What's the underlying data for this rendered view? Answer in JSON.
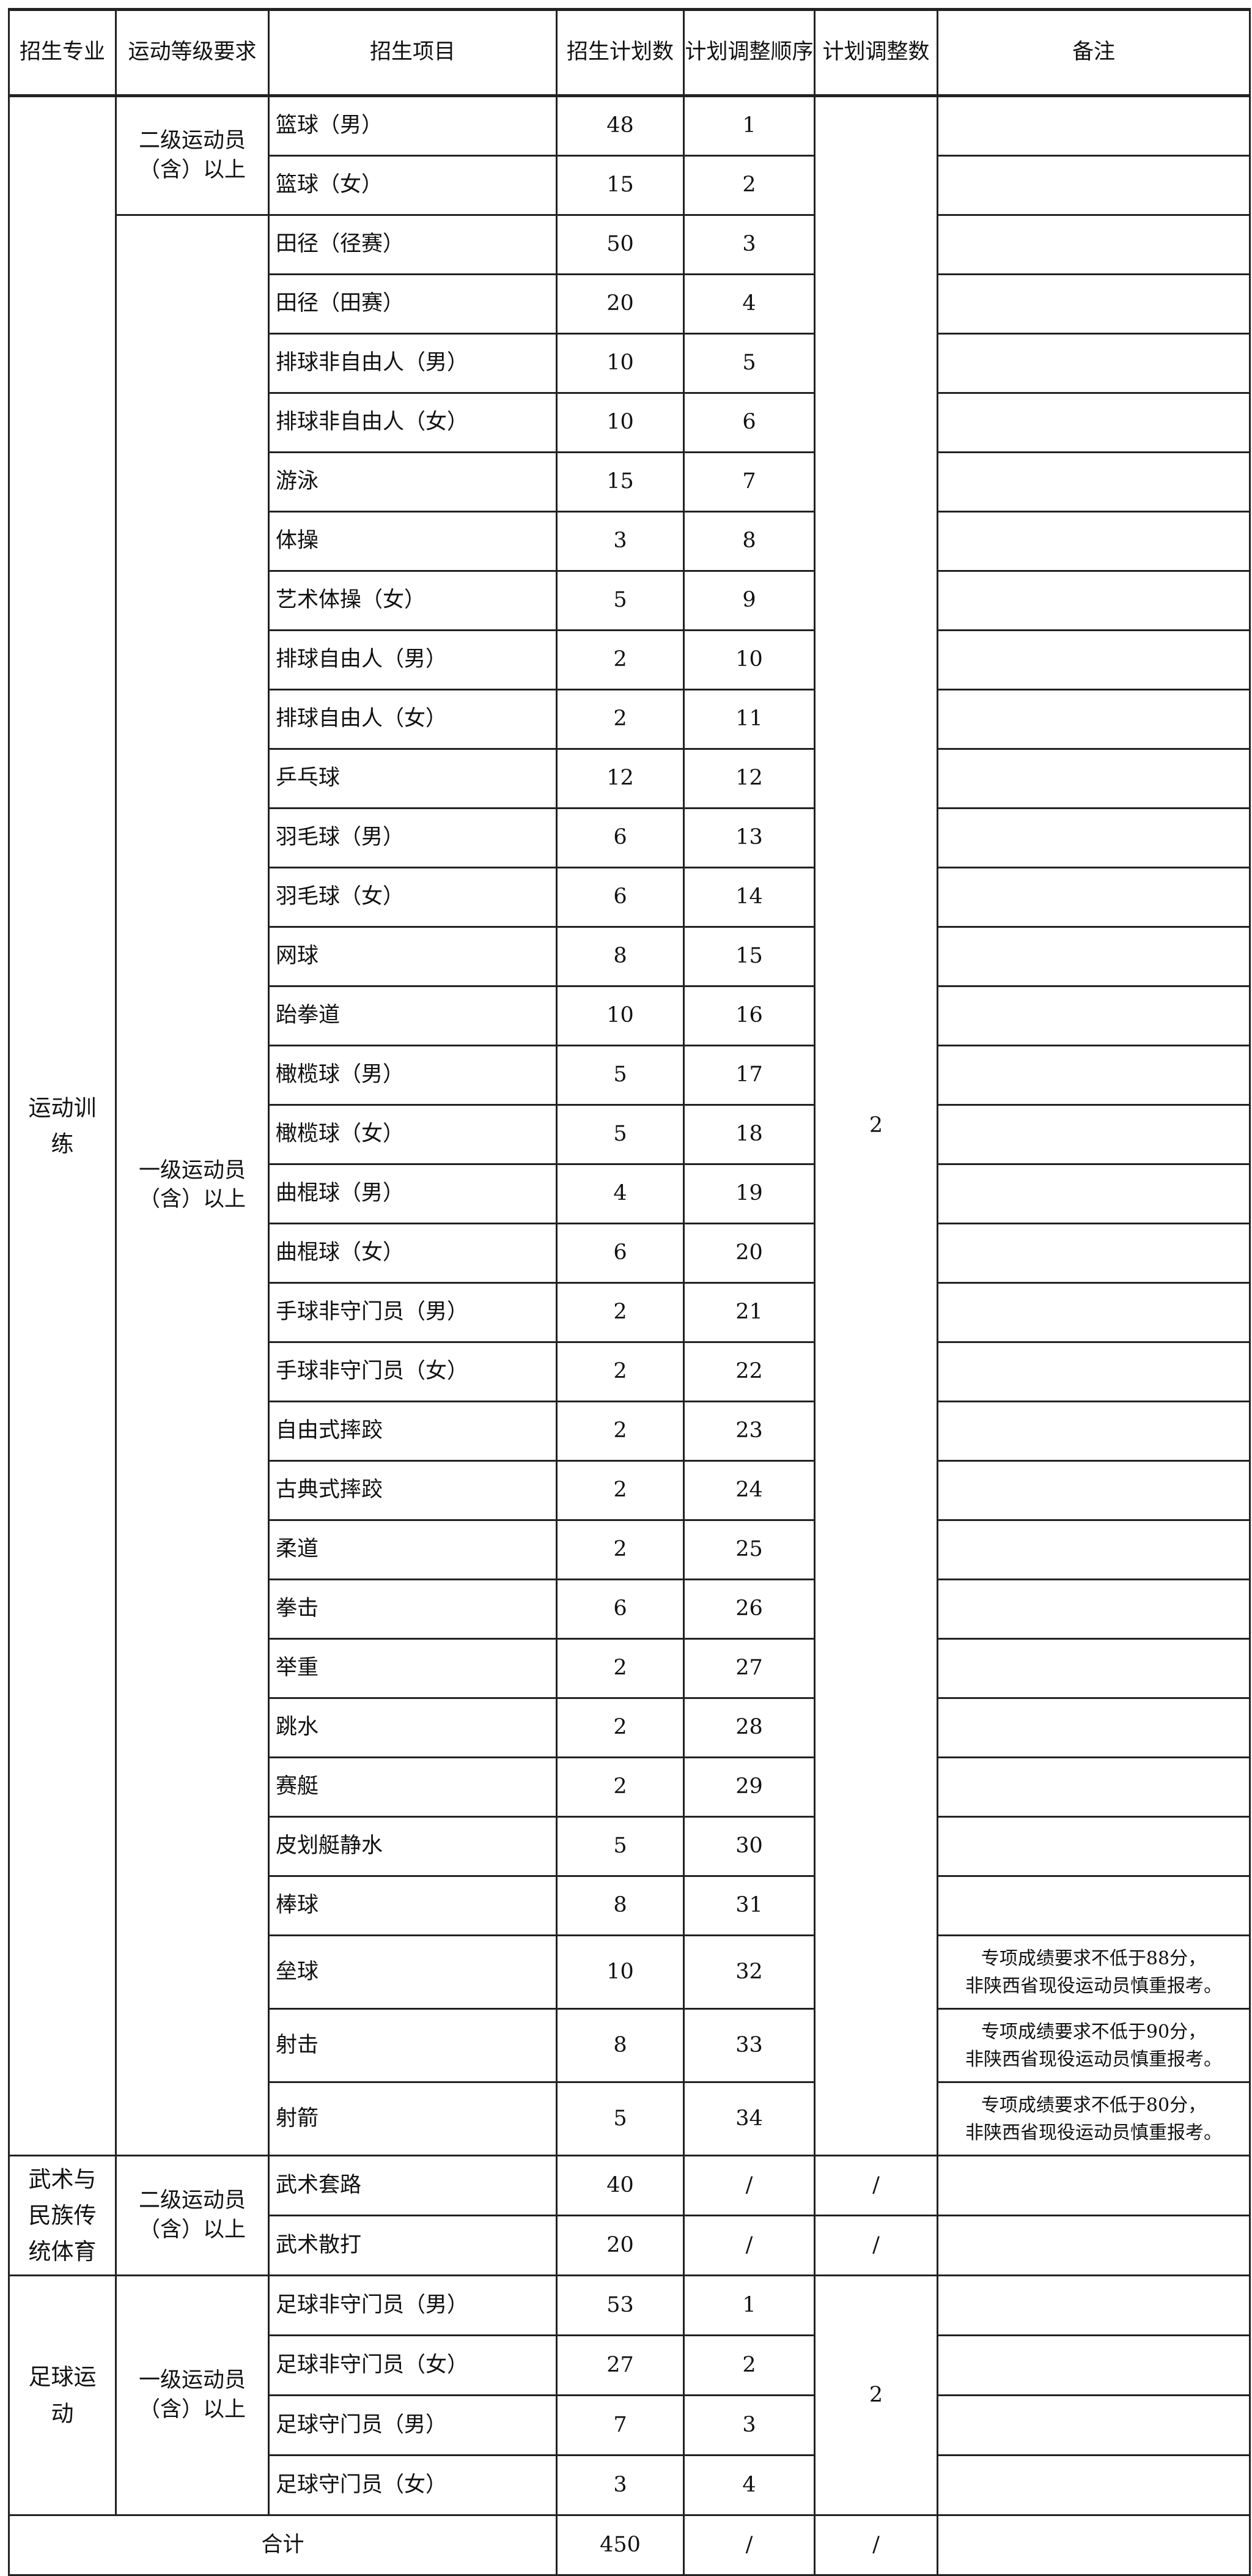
{
  "headers": [
    "招生专业",
    "运动等级要求",
    "招生项目",
    "招生计划数",
    "计划调整顺序",
    "计划调整数",
    "备注"
  ],
  "groups": [
    {
      "major": "运动训练",
      "adjust": "2",
      "levels": [
        {
          "level": "二级运动员（含）以上",
          "rows": [
            {
              "item": "篮球（男）",
              "plan": "48",
              "order": "1",
              "remark": ""
            },
            {
              "item": "篮球（女）",
              "plan": "15",
              "order": "2",
              "remark": ""
            }
          ]
        },
        {
          "level": "一级运动员（含）以上",
          "rows": [
            {
              "item": "田径（径赛）",
              "plan": "50",
              "order": "3",
              "remark": ""
            },
            {
              "item": "田径（田赛）",
              "plan": "20",
              "order": "4",
              "remark": ""
            },
            {
              "item": "排球非自由人（男）",
              "plan": "10",
              "order": "5",
              "remark": ""
            },
            {
              "item": "排球非自由人（女）",
              "plan": "10",
              "order": "6",
              "remark": ""
            },
            {
              "item": "游泳",
              "plan": "15",
              "order": "7",
              "remark": ""
            },
            {
              "item": "体操",
              "plan": "3",
              "order": "8",
              "remark": ""
            },
            {
              "item": "艺术体操（女）",
              "plan": "5",
              "order": "9",
              "remark": ""
            },
            {
              "item": "排球自由人（男）",
              "plan": "2",
              "order": "10",
              "remark": ""
            },
            {
              "item": "排球自由人（女）",
              "plan": "2",
              "order": "11",
              "remark": ""
            },
            {
              "item": "乒乓球",
              "plan": "12",
              "order": "12",
              "remark": ""
            },
            {
              "item": "羽毛球（男）",
              "plan": "6",
              "order": "13",
              "remark": ""
            },
            {
              "item": "羽毛球（女）",
              "plan": "6",
              "order": "14",
              "remark": ""
            },
            {
              "item": "网球",
              "plan": "8",
              "order": "15",
              "remark": ""
            },
            {
              "item": "跆拳道",
              "plan": "10",
              "order": "16",
              "remark": ""
            },
            {
              "item": "橄榄球（男）",
              "plan": "5",
              "order": "17",
              "remark": ""
            },
            {
              "item": "橄榄球（女）",
              "plan": "5",
              "order": "18",
              "remark": ""
            },
            {
              "item": "曲棍球（男）",
              "plan": "4",
              "order": "19",
              "remark": ""
            },
            {
              "item": "曲棍球（女）",
              "plan": "6",
              "order": "20",
              "remark": ""
            },
            {
              "item": "手球非守门员（男）",
              "plan": "2",
              "order": "21",
              "remark": ""
            },
            {
              "item": "手球非守门员（女）",
              "plan": "2",
              "order": "22",
              "remark": ""
            },
            {
              "item": "自由式摔跤",
              "plan": "2",
              "order": "23",
              "remark": ""
            },
            {
              "item": "古典式摔跤",
              "plan": "2",
              "order": "24",
              "remark": ""
            },
            {
              "item": "柔道",
              "plan": "2",
              "order": "25",
              "remark": ""
            },
            {
              "item": "拳击",
              "plan": "6",
              "order": "26",
              "remark": ""
            },
            {
              "item": "举重",
              "plan": "2",
              "order": "27",
              "remark": ""
            },
            {
              "item": "跳水",
              "plan": "2",
              "order": "28",
              "remark": ""
            },
            {
              "item": "赛艇",
              "plan": "2",
              "order": "29",
              "remark": ""
            },
            {
              "item": "皮划艇静水",
              "plan": "5",
              "order": "30",
              "remark": ""
            },
            {
              "item": "棒球",
              "plan": "8",
              "order": "31",
              "remark": ""
            },
            {
              "item": "垒球",
              "plan": "10",
              "order": "32",
              "remark": "专项成绩要求不低于88分，\n非陕西省现役运动员慎重报考。"
            },
            {
              "item": "射击",
              "plan": "8",
              "order": "33",
              "remark": "专项成绩要求不低于90分，\n非陕西省现役运动员慎重报考。"
            },
            {
              "item": "射箭",
              "plan": "5",
              "order": "34",
              "remark": "专项成绩要求不低于80分，\n非陕西省现役运动员慎重报考。"
            }
          ]
        }
      ]
    },
    {
      "major": "武术与民族传统体育",
      "adjust": null,
      "levels": [
        {
          "level": "二级运动员（含）以上",
          "rows": [
            {
              "item": "武术套路",
              "plan": "40",
              "order": "/",
              "adjust": "/",
              "remark": ""
            },
            {
              "item": "武术散打",
              "plan": "20",
              "order": "/",
              "adjust": "/",
              "remark": ""
            }
          ]
        }
      ]
    },
    {
      "major": "足球运动",
      "adjust": "2",
      "levels": [
        {
          "level": "一级运动员（含）以上",
          "rows": [
            {
              "item": "足球非守门员（男）",
              "plan": "53",
              "order": "1",
              "remark": ""
            },
            {
              "item": "足球非守门员（女）",
              "plan": "27",
              "order": "2",
              "remark": ""
            },
            {
              "item": "足球守门员（男）",
              "plan": "7",
              "order": "3",
              "remark": ""
            },
            {
              "item": "足球守门员（女）",
              "plan": "3",
              "order": "4",
              "remark": ""
            }
          ]
        }
      ]
    }
  ],
  "total": {
    "label": "合计",
    "plan": "450",
    "order": "/",
    "adjust": "/",
    "remark": ""
  }
}
